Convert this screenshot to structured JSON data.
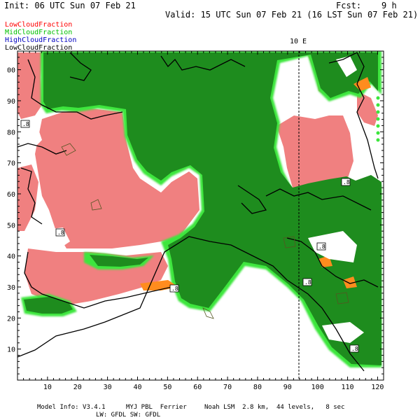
{
  "header": {
    "init": "Init: 06 UTC Sun 07 Feb 21",
    "fcst": "Fcst:    9 h",
    "valid": "Valid: 15 UTC Sun 07 Feb 21 (16 LST Sun 07 Feb 21)"
  },
  "legend": {
    "low": {
      "label": "LowCloudFraction",
      "color": "#ff0000"
    },
    "mid": {
      "label": "MidCloudFraction",
      "color": "#00c000"
    },
    "high": {
      "label": "HighCloudFraction",
      "color": "#0000c0"
    },
    "total": {
      "label": "LowCloudFraction",
      "color": "#000000"
    }
  },
  "map": {
    "meridian_label": "10 E",
    "x_ticks": [
      "10",
      "20",
      "30",
      "40",
      "50",
      "60",
      "70",
      "80",
      "90",
      "100",
      "110",
      "120"
    ],
    "y_ticks": [
      "10",
      "20",
      "30",
      "40",
      "50",
      "60",
      "70",
      "80",
      "90",
      "00"
    ],
    "box_label": ".8",
    "colors": {
      "low_fill": "#f08080",
      "mid_fill": "#1e8c1e",
      "mid_glow": "#3ce63c",
      "orange": "#ff8c1e"
    }
  },
  "footer": {
    "model_info": "Model Info: V3.4.1",
    "pbl": "MYJ PBL  Ferrier",
    "lsm": "Noah LSM  2.8 km,  44 levels,   8 sec",
    "rad": "LW: GFDL SW: GFDL"
  }
}
